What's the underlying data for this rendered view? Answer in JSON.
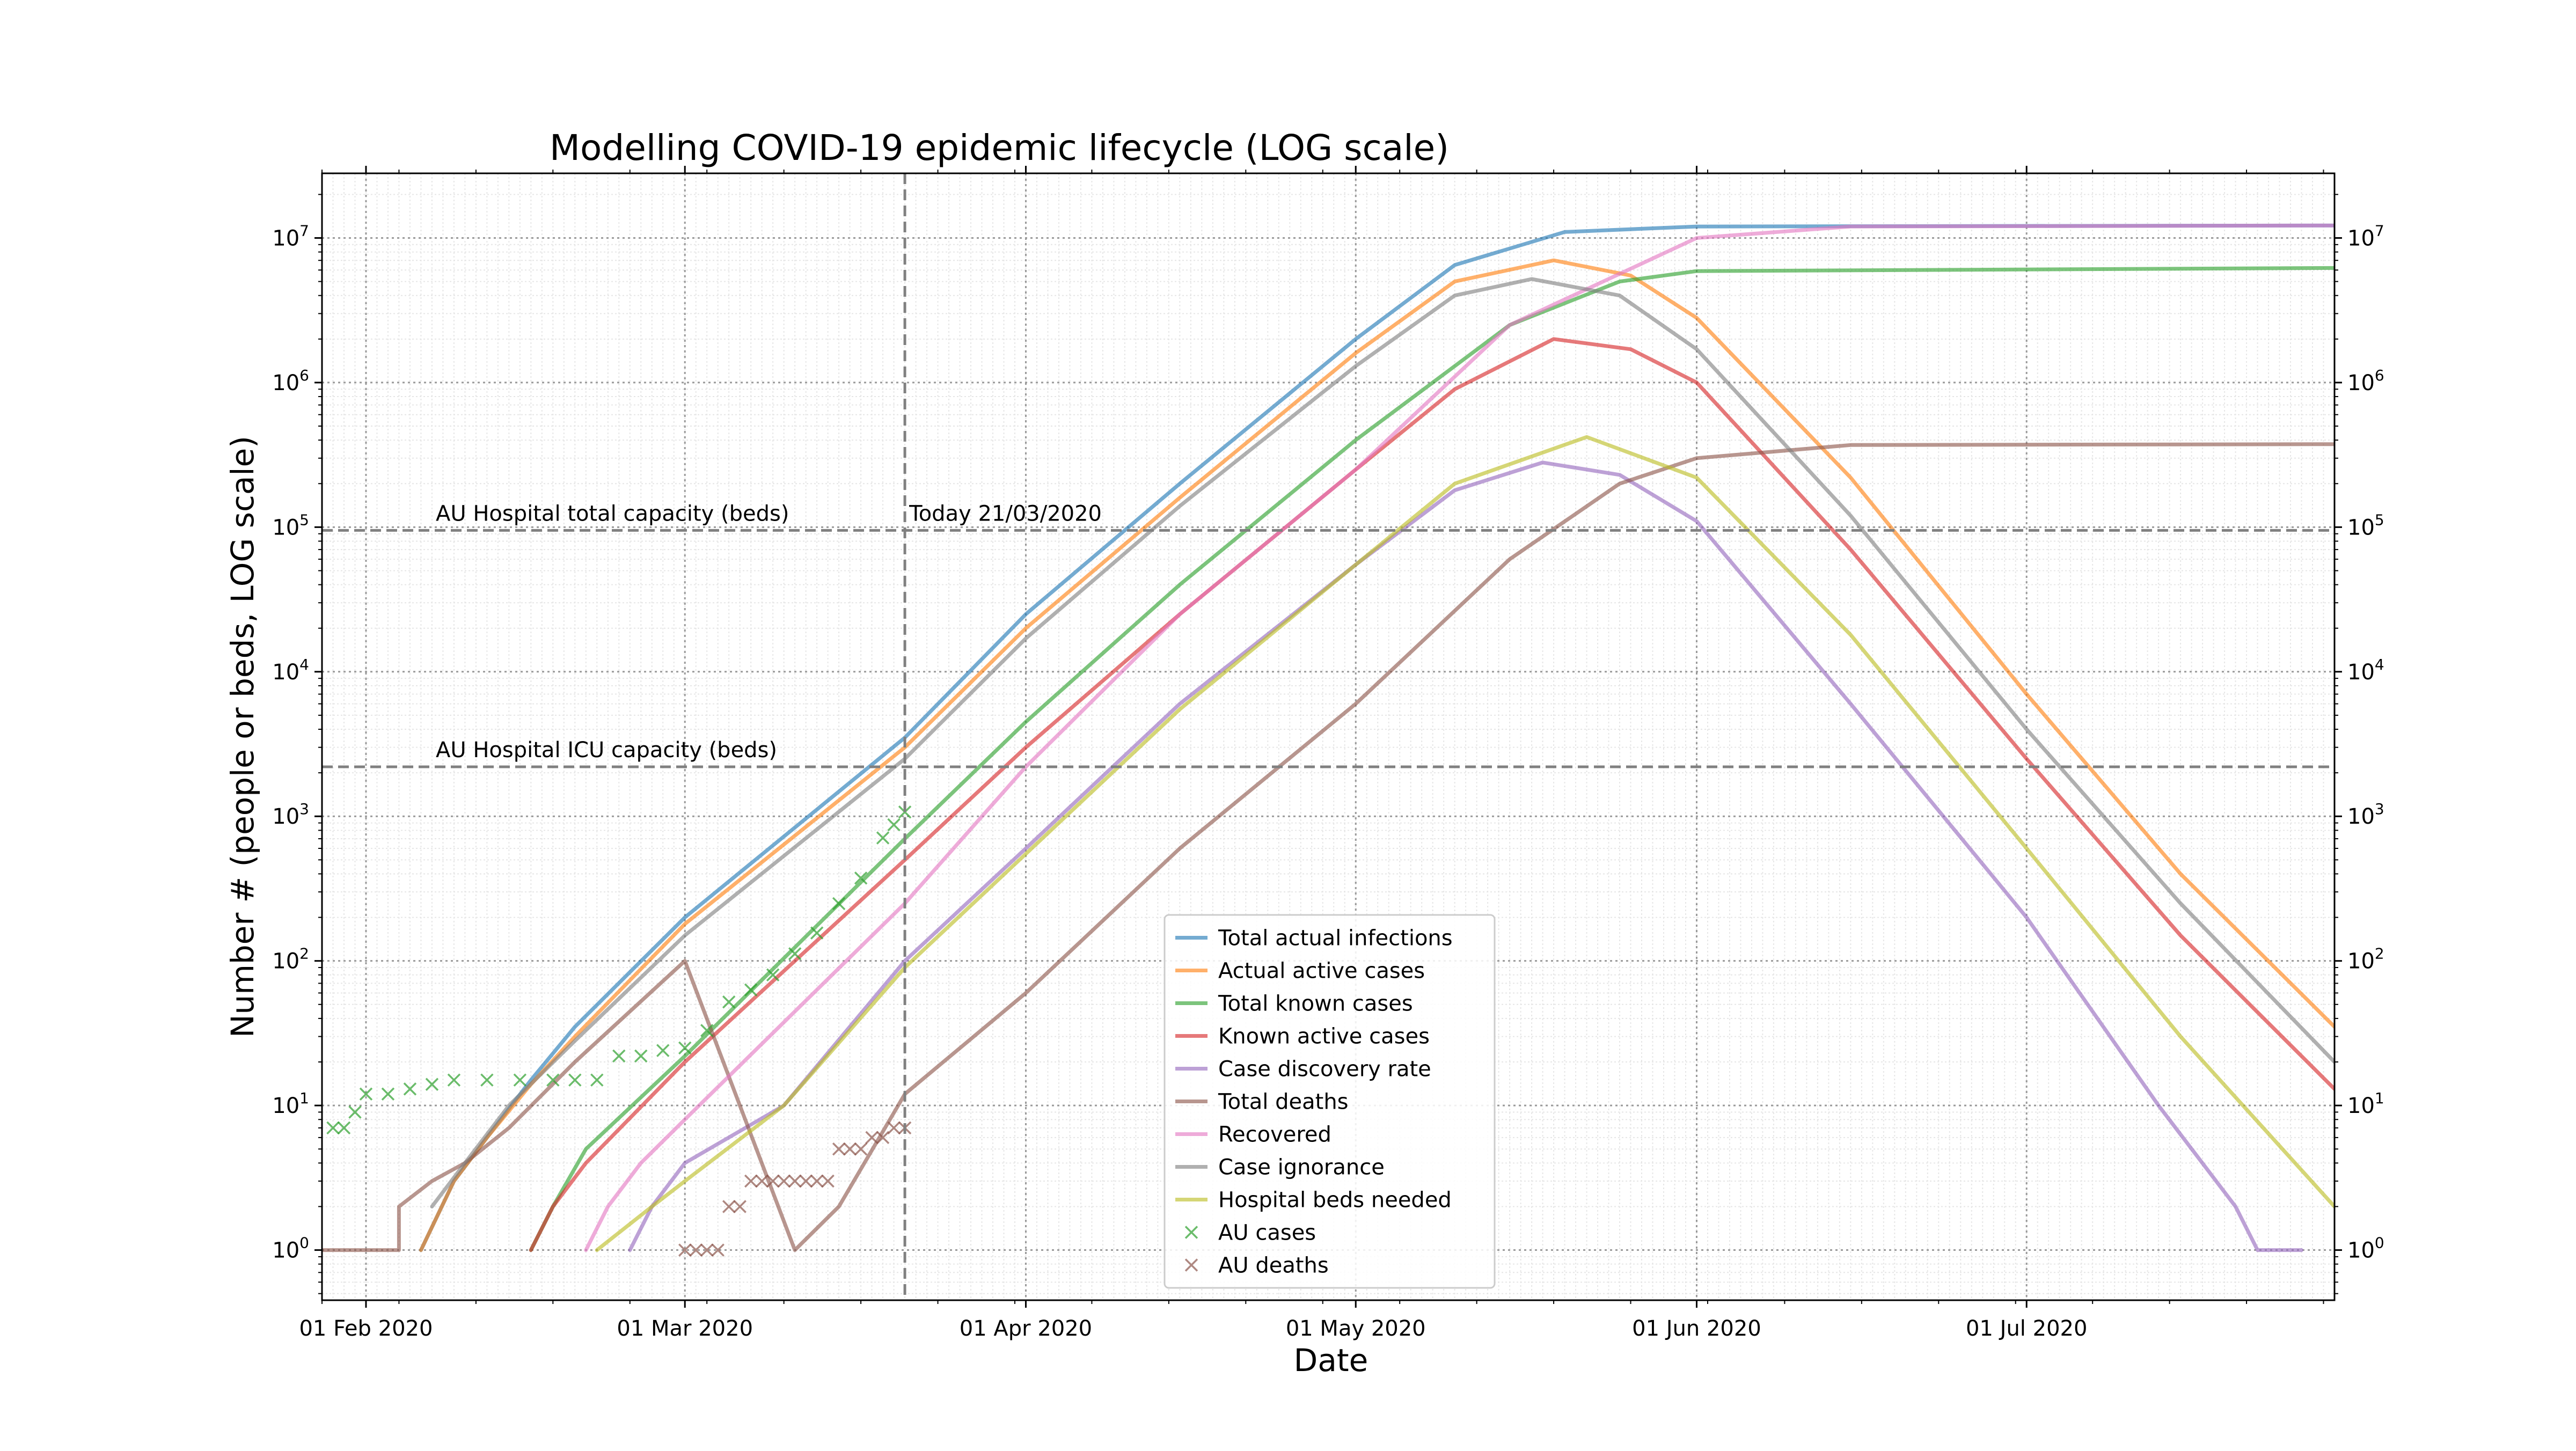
{
  "chart_data": {
    "type": "line",
    "title": "Modelling COVID-19 epidemic lifecycle (LOG scale)",
    "xlabel": "Date",
    "ylabel": "Number # (people or beds, LOG scale)",
    "x_range": [
      "2020-01-28",
      "2020-07-29"
    ],
    "x_ticks": [
      {
        "date": "2020-02-01",
        "label": "01 Feb 2020"
      },
      {
        "date": "2020-03-01",
        "label": "01 Mar 2020"
      },
      {
        "date": "2020-04-01",
        "label": "01 Apr 2020"
      },
      {
        "date": "2020-05-01",
        "label": "01 May 2020"
      },
      {
        "date": "2020-06-01",
        "label": "01 Jun 2020"
      },
      {
        "date": "2020-07-01",
        "label": "01 Jul 2020"
      }
    ],
    "y_scale": "log",
    "ylim": [
      0.45,
      28000000
    ],
    "y_ticks": [
      {
        "value": 1,
        "base": "10",
        "exp": "0"
      },
      {
        "value": 10,
        "base": "10",
        "exp": "1"
      },
      {
        "value": 100,
        "base": "10",
        "exp": "2"
      },
      {
        "value": 1000,
        "base": "10",
        "exp": "3"
      },
      {
        "value": 10000,
        "base": "10",
        "exp": "4"
      },
      {
        "value": 100000,
        "base": "10",
        "exp": "5"
      },
      {
        "value": 1000000,
        "base": "10",
        "exp": "6"
      },
      {
        "value": 10000000,
        "base": "10",
        "exp": "7"
      }
    ],
    "grid": true,
    "legend_position": "lower-center",
    "reference_lines": [
      {
        "orientation": "horizontal",
        "value": 95000,
        "label": "AU Hospital total capacity (beds)",
        "color": "#808080"
      },
      {
        "orientation": "horizontal",
        "value": 2200,
        "label": "AU Hospital ICU capacity (beds)",
        "color": "#808080"
      },
      {
        "orientation": "vertical",
        "date": "2020-03-21",
        "label": "Today 21/03/2020",
        "color": "#808080"
      }
    ],
    "series": [
      {
        "name": "Total actual infections",
        "color": "#1f77b4",
        "kind": "line",
        "points": [
          [
            "2020-02-06",
            1
          ],
          [
            "2020-02-09",
            3
          ],
          [
            "2020-02-12",
            6
          ],
          [
            "2020-02-16",
            15
          ],
          [
            "2020-02-20",
            35
          ],
          [
            "2020-03-01",
            200
          ],
          [
            "2020-03-21",
            3500
          ],
          [
            "2020-04-01",
            25000
          ],
          [
            "2020-04-15",
            200000
          ],
          [
            "2020-05-01",
            2000000
          ],
          [
            "2020-05-10",
            6500000
          ],
          [
            "2020-05-20",
            11000000
          ],
          [
            "2020-06-01",
            12000000
          ],
          [
            "2020-07-29",
            12200000
          ]
        ]
      },
      {
        "name": "Actual active cases",
        "color": "#ff7f0e",
        "kind": "line",
        "points": [
          [
            "2020-02-06",
            1
          ],
          [
            "2020-02-09",
            3
          ],
          [
            "2020-02-12",
            6
          ],
          [
            "2020-02-16",
            14
          ],
          [
            "2020-02-20",
            30
          ],
          [
            "2020-03-01",
            180
          ],
          [
            "2020-03-21",
            3000
          ],
          [
            "2020-04-01",
            20000
          ],
          [
            "2020-04-15",
            160000
          ],
          [
            "2020-05-01",
            1600000
          ],
          [
            "2020-05-10",
            5000000
          ],
          [
            "2020-05-19",
            7000000
          ],
          [
            "2020-05-26",
            5500000
          ],
          [
            "2020-06-01",
            2800000
          ],
          [
            "2020-06-15",
            220000
          ],
          [
            "2020-07-01",
            7000
          ],
          [
            "2020-07-15",
            400
          ],
          [
            "2020-07-29",
            35
          ]
        ]
      },
      {
        "name": "Total known cases",
        "color": "#2ca02c",
        "kind": "line",
        "points": [
          [
            "2020-02-16",
            1
          ],
          [
            "2020-02-18",
            2
          ],
          [
            "2020-02-21",
            5
          ],
          [
            "2020-03-01",
            22
          ],
          [
            "2020-03-21",
            700
          ],
          [
            "2020-04-01",
            4500
          ],
          [
            "2020-04-15",
            40000
          ],
          [
            "2020-05-01",
            400000
          ],
          [
            "2020-05-15",
            2500000
          ],
          [
            "2020-05-25",
            5000000
          ],
          [
            "2020-06-01",
            5900000
          ],
          [
            "2020-07-29",
            6200000
          ]
        ]
      },
      {
        "name": "Known active cases",
        "color": "#d62728",
        "kind": "line",
        "points": [
          [
            "2020-02-16",
            1
          ],
          [
            "2020-02-18",
            2
          ],
          [
            "2020-02-21",
            4
          ],
          [
            "2020-03-01",
            20
          ],
          [
            "2020-03-21",
            500
          ],
          [
            "2020-04-01",
            3000
          ],
          [
            "2020-04-15",
            25000
          ],
          [
            "2020-05-01",
            250000
          ],
          [
            "2020-05-10",
            900000
          ],
          [
            "2020-05-19",
            2000000
          ],
          [
            "2020-05-26",
            1700000
          ],
          [
            "2020-06-01",
            1000000
          ],
          [
            "2020-06-15",
            70000
          ],
          [
            "2020-07-01",
            2500
          ],
          [
            "2020-07-15",
            150
          ],
          [
            "2020-07-29",
            13
          ]
        ]
      },
      {
        "name": "Case discovery rate",
        "color": "#9467bd",
        "kind": "line",
        "points": [
          [
            "2020-02-25",
            1
          ],
          [
            "2020-02-27",
            2
          ],
          [
            "2020-03-01",
            4
          ],
          [
            "2020-03-10",
            10
          ],
          [
            "2020-03-21",
            100
          ],
          [
            "2020-04-01",
            600
          ],
          [
            "2020-04-15",
            6000
          ],
          [
            "2020-05-01",
            55000
          ],
          [
            "2020-05-10",
            180000
          ],
          [
            "2020-05-18",
            280000
          ],
          [
            "2020-05-25",
            230000
          ],
          [
            "2020-06-01",
            110000
          ],
          [
            "2020-06-15",
            6000
          ],
          [
            "2020-07-01",
            200
          ],
          [
            "2020-07-13",
            10
          ],
          [
            "2020-07-20",
            2
          ],
          [
            "2020-07-22",
            1
          ],
          [
            "2020-07-26",
            1
          ]
        ]
      },
      {
        "name": "Total deaths",
        "color": "#8c564b",
        "kind": "line",
        "points": [
          [
            "2020-01-28",
            1
          ],
          [
            "2020-02-04",
            1
          ],
          [
            "2020-02-04",
            2
          ],
          [
            "2020-02-07",
            3
          ],
          [
            "2020-02-10",
            4
          ],
          [
            "2020-02-14",
            7
          ],
          [
            "2020-02-20",
            20
          ],
          [
            "2020-03-01",
            100
          ],
          [
            "2020-03-11",
            1
          ],
          [
            "2020-03-15",
            2
          ],
          [
            "2020-03-21",
            12
          ],
          [
            "2020-04-01",
            60
          ],
          [
            "2020-04-15",
            600
          ],
          [
            "2020-05-01",
            6000
          ],
          [
            "2020-05-15",
            60000
          ],
          [
            "2020-05-25",
            200000
          ],
          [
            "2020-06-01",
            300000
          ],
          [
            "2020-06-15",
            370000
          ],
          [
            "2020-07-29",
            375000
          ]
        ]
      },
      {
        "name": "Recovered",
        "color": "#e377c2",
        "kind": "line",
        "points": [
          [
            "2020-02-21",
            1
          ],
          [
            "2020-02-23",
            2
          ],
          [
            "2020-02-26",
            4
          ],
          [
            "2020-03-01",
            8
          ],
          [
            "2020-03-21",
            250
          ],
          [
            "2020-04-01",
            2200
          ],
          [
            "2020-04-15",
            25000
          ],
          [
            "2020-05-01",
            250000
          ],
          [
            "2020-05-15",
            2500000
          ],
          [
            "2020-06-01",
            10000000
          ],
          [
            "2020-06-15",
            12000000
          ],
          [
            "2020-07-29",
            12200000
          ]
        ]
      },
      {
        "name": "Case ignorance",
        "color": "#7f7f7f",
        "kind": "line",
        "points": [
          [
            "2020-02-07",
            2
          ],
          [
            "2020-02-10",
            4
          ],
          [
            "2020-02-14",
            10
          ],
          [
            "2020-02-20",
            28
          ],
          [
            "2020-03-01",
            150
          ],
          [
            "2020-03-21",
            2500
          ],
          [
            "2020-04-01",
            17000
          ],
          [
            "2020-04-15",
            140000
          ],
          [
            "2020-05-01",
            1300000
          ],
          [
            "2020-05-10",
            4000000
          ],
          [
            "2020-05-17",
            5200000
          ],
          [
            "2020-05-25",
            4000000
          ],
          [
            "2020-06-01",
            1700000
          ],
          [
            "2020-06-15",
            120000
          ],
          [
            "2020-07-01",
            4000
          ],
          [
            "2020-07-15",
            250
          ],
          [
            "2020-07-29",
            20
          ]
        ]
      },
      {
        "name": "Hospital beds needed",
        "color": "#bcbd22",
        "kind": "line",
        "points": [
          [
            "2020-02-22",
            1
          ],
          [
            "2020-02-27",
            2
          ],
          [
            "2020-03-01",
            3
          ],
          [
            "2020-03-10",
            10
          ],
          [
            "2020-03-21",
            90
          ],
          [
            "2020-04-01",
            550
          ],
          [
            "2020-04-15",
            5500
          ],
          [
            "2020-05-01",
            55000
          ],
          [
            "2020-05-10",
            200000
          ],
          [
            "2020-05-22",
            420000
          ],
          [
            "2020-06-01",
            220000
          ],
          [
            "2020-06-15",
            18000
          ],
          [
            "2020-07-01",
            600
          ],
          [
            "2020-07-15",
            30
          ],
          [
            "2020-07-29",
            2
          ]
        ]
      },
      {
        "name": "AU cases",
        "color": "#2ca02c",
        "kind": "marker",
        "points": [
          [
            "2020-01-29",
            7
          ],
          [
            "2020-01-30",
            7
          ],
          [
            "2020-01-31",
            9
          ],
          [
            "2020-02-01",
            12
          ],
          [
            "2020-02-03",
            12
          ],
          [
            "2020-02-05",
            13
          ],
          [
            "2020-02-07",
            14
          ],
          [
            "2020-02-09",
            15
          ],
          [
            "2020-02-12",
            15
          ],
          [
            "2020-02-15",
            15
          ],
          [
            "2020-02-18",
            15
          ],
          [
            "2020-02-20",
            15
          ],
          [
            "2020-02-22",
            15
          ],
          [
            "2020-02-24",
            22
          ],
          [
            "2020-02-26",
            22
          ],
          [
            "2020-02-28",
            24
          ],
          [
            "2020-03-01",
            25
          ],
          [
            "2020-03-03",
            33
          ],
          [
            "2020-03-05",
            52
          ],
          [
            "2020-03-07",
            63
          ],
          [
            "2020-03-09",
            80
          ],
          [
            "2020-03-11",
            112
          ],
          [
            "2020-03-13",
            156
          ],
          [
            "2020-03-15",
            249
          ],
          [
            "2020-03-17",
            374
          ],
          [
            "2020-03-19",
            709
          ],
          [
            "2020-03-20",
            874
          ],
          [
            "2020-03-21",
            1071
          ]
        ]
      },
      {
        "name": "AU deaths",
        "color": "#8c564b",
        "kind": "marker",
        "points": [
          [
            "2020-03-01",
            1
          ],
          [
            "2020-03-02",
            1
          ],
          [
            "2020-03-03",
            1
          ],
          [
            "2020-03-04",
            1
          ],
          [
            "2020-03-05",
            2
          ],
          [
            "2020-03-06",
            2
          ],
          [
            "2020-03-07",
            3
          ],
          [
            "2020-03-08",
            3
          ],
          [
            "2020-03-09",
            3
          ],
          [
            "2020-03-10",
            3
          ],
          [
            "2020-03-11",
            3
          ],
          [
            "2020-03-12",
            3
          ],
          [
            "2020-03-13",
            3
          ],
          [
            "2020-03-14",
            3
          ],
          [
            "2020-03-15",
            5
          ],
          [
            "2020-03-16",
            5
          ],
          [
            "2020-03-17",
            5
          ],
          [
            "2020-03-18",
            6
          ],
          [
            "2020-03-19",
            6
          ],
          [
            "2020-03-20",
            7
          ],
          [
            "2020-03-21",
            7
          ]
        ]
      }
    ]
  }
}
